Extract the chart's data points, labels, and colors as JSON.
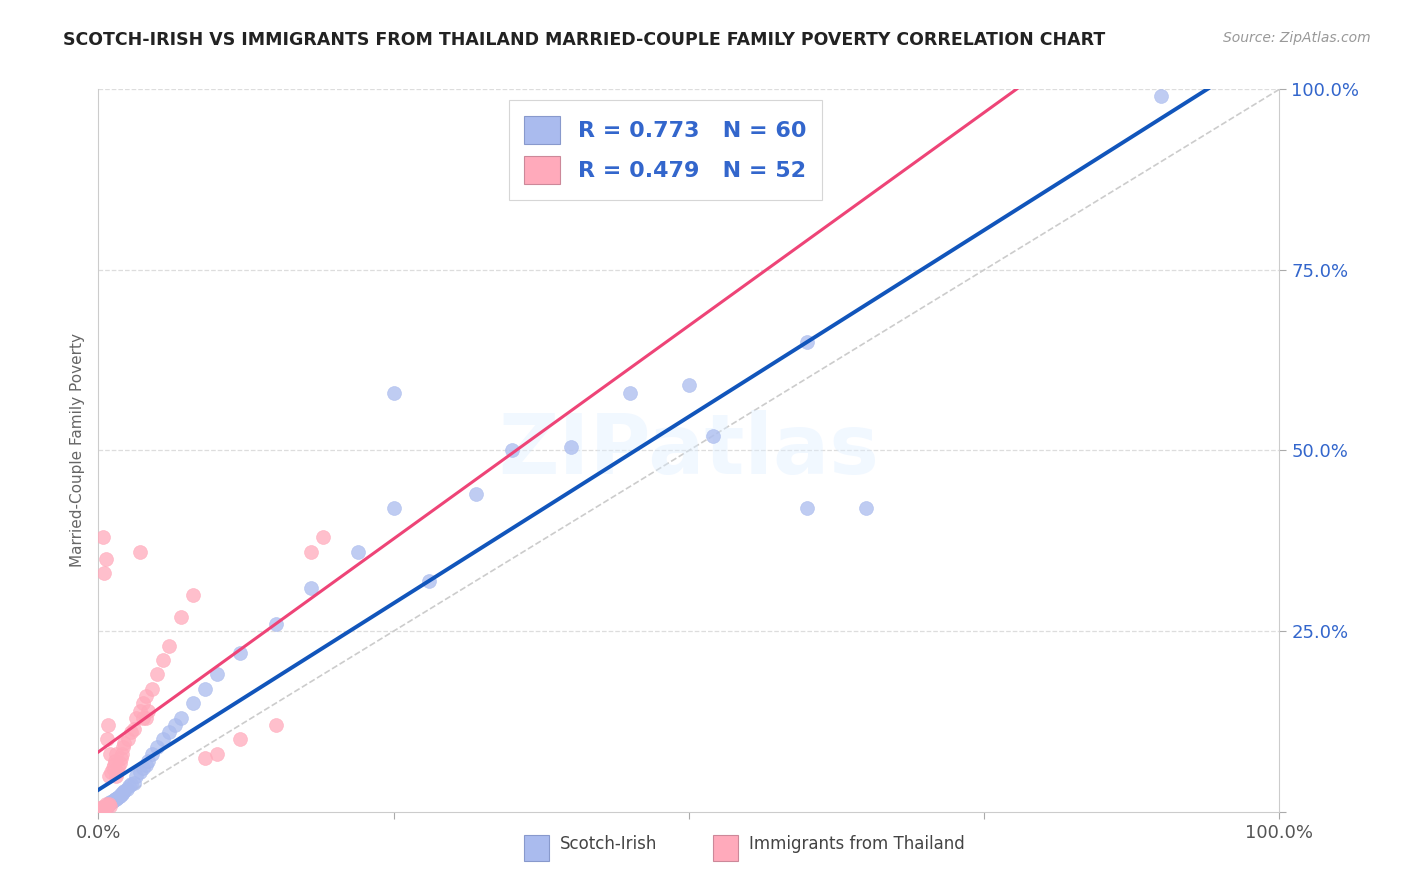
{
  "title": "SCOTCH-IRISH VS IMMIGRANTS FROM THAILAND MARRIED-COUPLE FAMILY POVERTY CORRELATION CHART",
  "source": "Source: ZipAtlas.com",
  "ylabel": "Married-Couple Family Poverty",
  "legend_label_blue": "Scotch-Irish",
  "legend_label_pink": "Immigrants from Thailand",
  "R_blue": 0.773,
  "N_blue": 60,
  "R_pink": 0.479,
  "N_pink": 52,
  "color_blue_scatter": "#AABBEE",
  "color_pink_scatter": "#FFAABB",
  "color_blue_line": "#1155BB",
  "color_pink_line": "#EE4477",
  "color_diagonal": "#CCCCCC",
  "color_grid": "#DDDDDD",
  "watermark": "ZIPatlas",
  "background_color": "#FFFFFF",
  "legend_text_color": "#3366CC",
  "title_color": "#222222",
  "blue_x": [
    0.002,
    0.003,
    0.004,
    0.005,
    0.005,
    0.006,
    0.007,
    0.007,
    0.008,
    0.008,
    0.009,
    0.01,
    0.01,
    0.011,
    0.012,
    0.013,
    0.014,
    0.015,
    0.016,
    0.017,
    0.018,
    0.019,
    0.02,
    0.021,
    0.022,
    0.024,
    0.026,
    0.028,
    0.03,
    0.032,
    0.035,
    0.038,
    0.04,
    0.042,
    0.045,
    0.05,
    0.055,
    0.06,
    0.065,
    0.07,
    0.08,
    0.09,
    0.1,
    0.12,
    0.15,
    0.18,
    0.22,
    0.25,
    0.28,
    0.32,
    0.35,
    0.4,
    0.45,
    0.5,
    0.52,
    0.6,
    0.65,
    0.9,
    0.25,
    0.6
  ],
  "blue_y": [
    0.002,
    0.003,
    0.004,
    0.005,
    0.006,
    0.007,
    0.007,
    0.008,
    0.009,
    0.01,
    0.011,
    0.012,
    0.013,
    0.014,
    0.015,
    0.016,
    0.017,
    0.018,
    0.019,
    0.02,
    0.022,
    0.024,
    0.025,
    0.027,
    0.029,
    0.032,
    0.035,
    0.038,
    0.04,
    0.05,
    0.055,
    0.06,
    0.065,
    0.07,
    0.08,
    0.09,
    0.1,
    0.11,
    0.12,
    0.13,
    0.15,
    0.17,
    0.19,
    0.22,
    0.26,
    0.31,
    0.36,
    0.42,
    0.32,
    0.44,
    0.5,
    0.505,
    0.58,
    0.59,
    0.52,
    0.65,
    0.42,
    0.99,
    0.58,
    0.42
  ],
  "pink_x": [
    0.002,
    0.003,
    0.004,
    0.004,
    0.005,
    0.005,
    0.006,
    0.006,
    0.007,
    0.007,
    0.008,
    0.008,
    0.009,
    0.009,
    0.01,
    0.01,
    0.011,
    0.012,
    0.013,
    0.014,
    0.015,
    0.015,
    0.016,
    0.017,
    0.018,
    0.019,
    0.02,
    0.021,
    0.022,
    0.025,
    0.028,
    0.03,
    0.032,
    0.035,
    0.038,
    0.04,
    0.042,
    0.045,
    0.05,
    0.055,
    0.06,
    0.07,
    0.08,
    0.09,
    0.1,
    0.12,
    0.15,
    0.18,
    0.19,
    0.035,
    0.038,
    0.04
  ],
  "pink_y": [
    0.005,
    0.006,
    0.007,
    0.38,
    0.005,
    0.33,
    0.01,
    0.35,
    0.008,
    0.1,
    0.009,
    0.12,
    0.01,
    0.05,
    0.008,
    0.08,
    0.055,
    0.06,
    0.065,
    0.07,
    0.05,
    0.08,
    0.055,
    0.062,
    0.068,
    0.075,
    0.08,
    0.09,
    0.095,
    0.1,
    0.11,
    0.115,
    0.13,
    0.14,
    0.15,
    0.16,
    0.14,
    0.17,
    0.19,
    0.21,
    0.23,
    0.27,
    0.3,
    0.075,
    0.08,
    0.1,
    0.12,
    0.36,
    0.38,
    0.36,
    0.13,
    0.13
  ]
}
